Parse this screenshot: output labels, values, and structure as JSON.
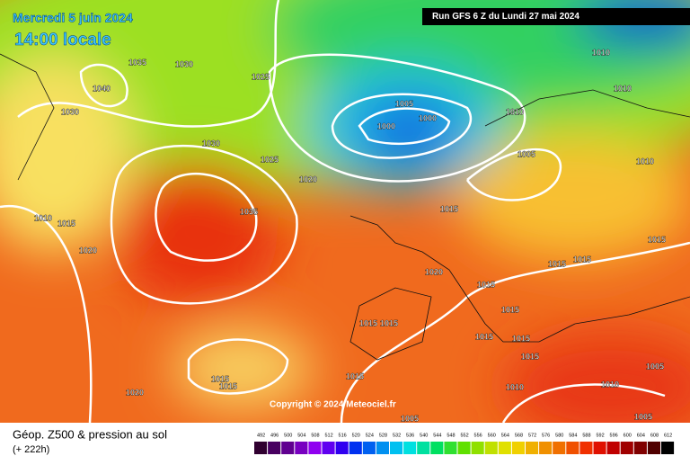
{
  "header": {
    "date": "Mercredi 5 juin 2024",
    "time": "14:00 locale",
    "run": "Run GFS 6 Z du Lundi 27 mai 2024"
  },
  "isobar_labels": [
    1035,
    1030,
    1040,
    1030,
    1025,
    1030,
    1025,
    1020,
    1035,
    1010,
    1015,
    1020,
    1005,
    1000,
    1000,
    1010,
    1010,
    1010,
    1005,
    1010,
    1015,
    1015,
    1015,
    1015,
    1020,
    1015,
    1015,
    1015,
    1015,
    1015,
    1015,
    1015,
    1015,
    1015,
    1015,
    1020,
    1010,
    1010,
    1005,
    1005,
    1005
  ],
  "copyright": "Copyright © 2024 Meteociel.fr",
  "footer": {
    "title": "Géop. Z500 & pression au sol",
    "lead": "(+ 222h)"
  },
  "scale": [
    492,
    496,
    500,
    504,
    508,
    512,
    516,
    520,
    524,
    528,
    532,
    536,
    540,
    544,
    548,
    552,
    556,
    560,
    564,
    568,
    572,
    576,
    580,
    584,
    588,
    592,
    596,
    600,
    604,
    608,
    612
  ]
}
